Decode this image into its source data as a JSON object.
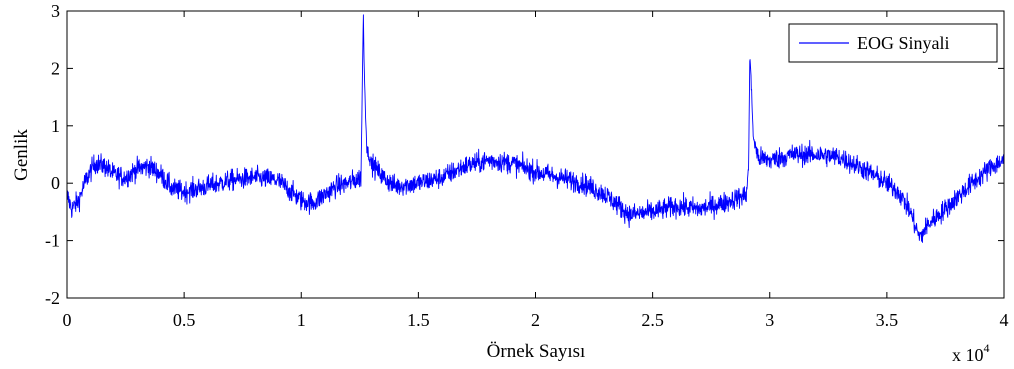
{
  "chart_data": {
    "type": "line",
    "title": "",
    "xlabel": "Örnek Sayısı",
    "ylabel": "Genlik",
    "x_multiplier_label": "x 10",
    "x_multiplier_exponent": "4",
    "xlim": [
      0,
      4
    ],
    "ylim": [
      -2,
      3
    ],
    "xticks": [
      0,
      0.5,
      1,
      1.5,
      2,
      2.5,
      3,
      3.5,
      4
    ],
    "xtick_labels": [
      "0",
      "0.5",
      "1",
      "1.5",
      "2",
      "2.5",
      "3",
      "3.5",
      "4"
    ],
    "yticks": [
      -2,
      -1,
      0,
      1,
      2,
      3
    ],
    "ytick_labels": [
      "-2",
      "-1",
      "0",
      "1",
      "2",
      "3"
    ],
    "grid": false,
    "legend_position": "top-right",
    "noise_amplitude": 0.13,
    "series": [
      {
        "name": "EOG Sinyali",
        "color": "#0000ff",
        "x": [
          0,
          0.02,
          0.05,
          0.08,
          0.12,
          0.16,
          0.2,
          0.25,
          0.3,
          0.35,
          0.4,
          0.45,
          0.5,
          0.55,
          0.6,
          0.7,
          0.8,
          0.9,
          1.0,
          1.05,
          1.1,
          1.15,
          1.2,
          1.255,
          1.265,
          1.27,
          1.28,
          1.3,
          1.35,
          1.4,
          1.5,
          1.6,
          1.7,
          1.8,
          1.9,
          2.0,
          2.1,
          2.2,
          2.3,
          2.4,
          2.5,
          2.6,
          2.7,
          2.8,
          2.9,
          2.91,
          2.915,
          2.93,
          2.95,
          3.0,
          3.1,
          3.2,
          3.3,
          3.4,
          3.5,
          3.55,
          3.6,
          3.64,
          3.68,
          3.75,
          3.85,
          3.95,
          4.0
        ],
        "y": [
          -0.2,
          -0.45,
          -0.3,
          0.05,
          0.35,
          0.3,
          0.15,
          0.1,
          0.25,
          0.3,
          0.15,
          -0.1,
          -0.15,
          -0.1,
          -0.05,
          0.05,
          0.1,
          0.05,
          -0.3,
          -0.35,
          -0.2,
          -0.05,
          0.0,
          0.1,
          2.95,
          1.8,
          0.6,
          0.35,
          0.1,
          -0.05,
          0.0,
          0.1,
          0.3,
          0.4,
          0.35,
          0.2,
          0.1,
          0.0,
          -0.2,
          -0.55,
          -0.5,
          -0.4,
          -0.45,
          -0.35,
          -0.2,
          0.3,
          2.3,
          0.8,
          0.45,
          0.4,
          0.5,
          0.5,
          0.45,
          0.25,
          0.0,
          -0.15,
          -0.5,
          -0.95,
          -0.7,
          -0.45,
          -0.05,
          0.3,
          0.4
        ]
      }
    ]
  }
}
